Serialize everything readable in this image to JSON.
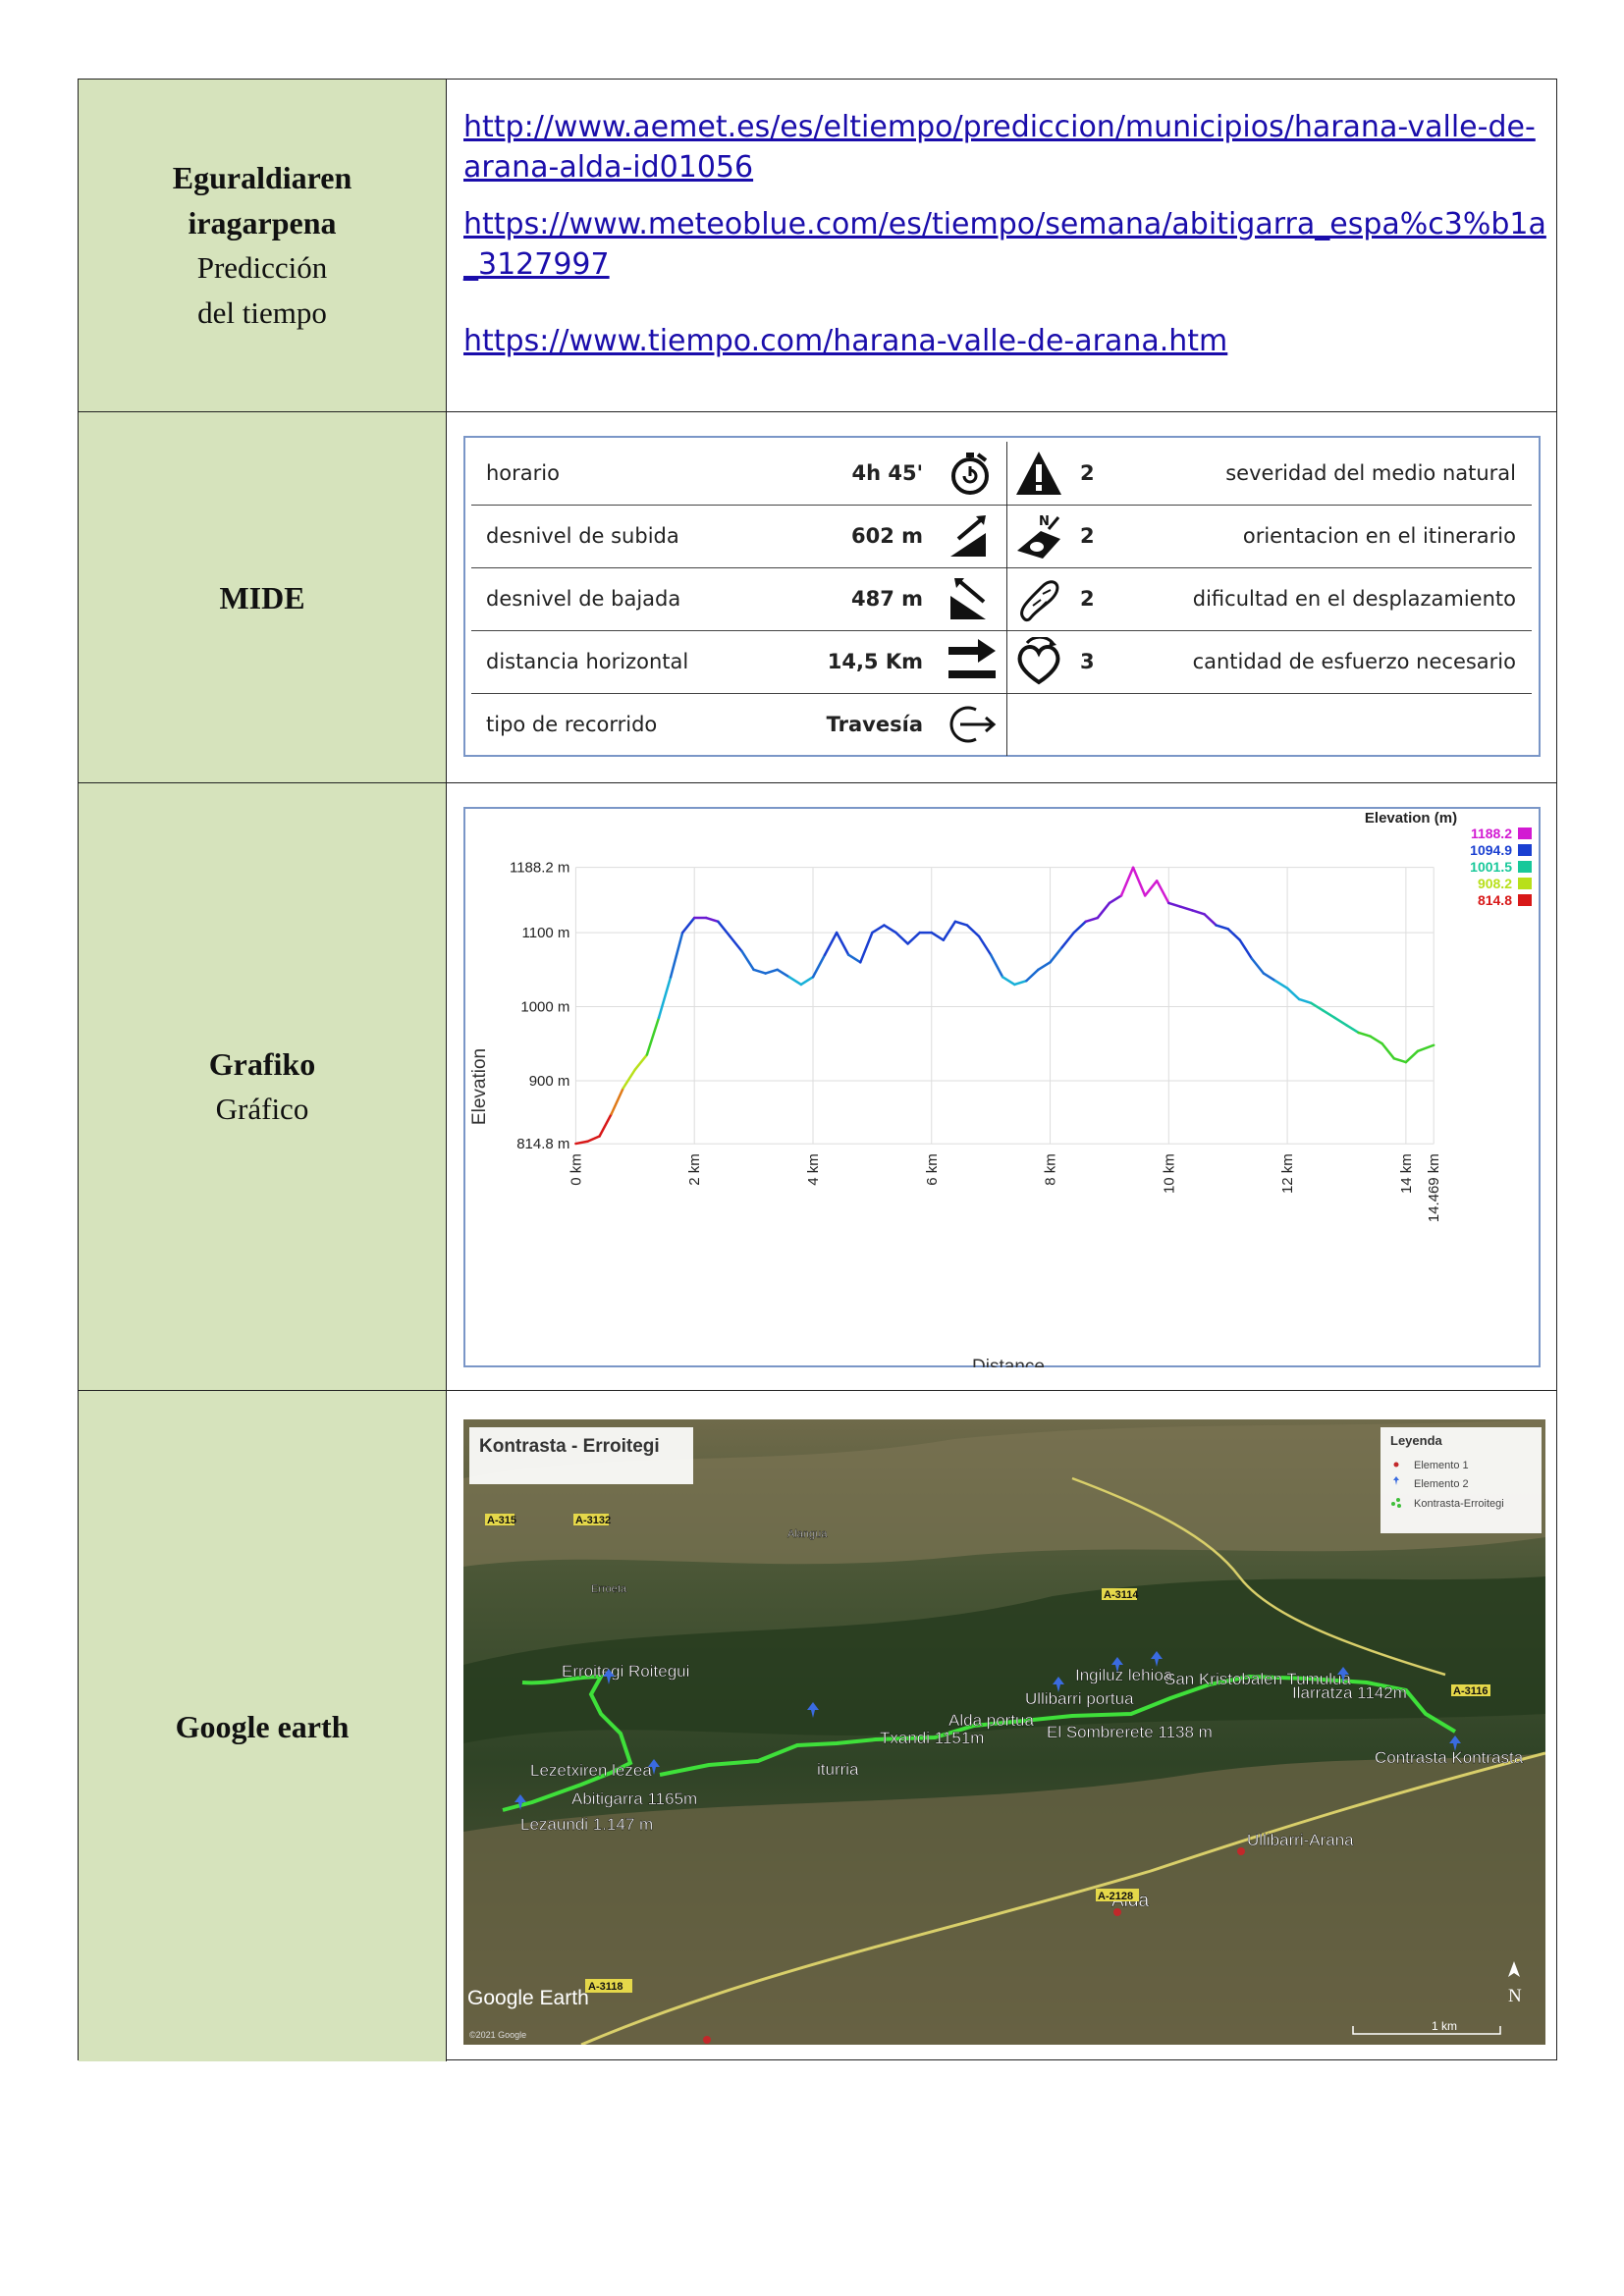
{
  "rows": {
    "forecast": {
      "label_bold_1": "Eguraldiaren",
      "label_bold_2": "iragarpena",
      "label_normal_1": "Predicción",
      "label_normal_2": "del tiempo",
      "links": [
        "http://www.aemet.es/es/eltiempo/prediccion/municipios/harana-valle-de-arana-alda-id01056",
        "https://www.meteoblue.com/es/tiempo/semana/abitigarra_espa%c3%b1a_3127997",
        "https://www.tiempo.com/harana-valle-de-arana.htm"
      ]
    },
    "mide": {
      "label": "MIDE",
      "items": [
        {
          "name": "horario",
          "value": "4h 45'",
          "score": "2",
          "desc": "severidad del medio natural"
        },
        {
          "name": "desnivel de subida",
          "value": "602 m",
          "score": "2",
          "desc": "orientacion en el itinerario"
        },
        {
          "name": "desnivel de bajada",
          "value": "487 m",
          "score": "2",
          "desc": "dificultad en el desplazamiento"
        },
        {
          "name": "distancia horizontal",
          "value": "14,5 Km",
          "score": "3",
          "desc": "cantidad de esfuerzo necesario"
        },
        {
          "name": "tipo de recorrido",
          "value": "Travesía"
        }
      ]
    },
    "graph": {
      "label_bold": "Grafiko",
      "label_normal": "Gráfico"
    },
    "map": {
      "label": "Google earth",
      "title": "Kontrasta - Erroitegi",
      "legend_title": "Leyenda",
      "legend_items": [
        "Elemento 1",
        "Elemento 2",
        "Kontrasta-Erroitegi"
      ],
      "places": [
        "Erroitegi Roitegui",
        "Lezetxiren lezea",
        "Abitigarra 1165m",
        "Lezaundi 1.147 m",
        "iturria",
        "Txandi 1151m",
        "Alda portua",
        "Ullibarri portua",
        "Ingiluz lehioa",
        "San Kristobalen Tumulua",
        "Ilarratza 1142m",
        "El Sombrerete 1138 m",
        "Contrasta Kontrasta",
        "Ullibarri-Arana",
        "Alda",
        "Alangua",
        "Erroeta"
      ],
      "roads": [
        "A-3114",
        "A-3116",
        "A-2128",
        "A-3118",
        "A-3132",
        "A-315"
      ],
      "brand": "Google Earth",
      "copyright": "©2021 Google",
      "scale": "1 km",
      "north": "N"
    }
  },
  "chart_data": {
    "type": "line",
    "title": "",
    "xlabel": "Distance",
    "ylabel": "Elevation",
    "legend_title": "Elevation (m)",
    "legend": [
      {
        "label": "1188.2",
        "color": "#d21ad2"
      },
      {
        "label": "1094.9",
        "color": "#1a3fd1"
      },
      {
        "label": "1001.5",
        "color": "#18c89a"
      },
      {
        "label": "908.2",
        "color": "#b8e01a"
      },
      {
        "label": "814.8",
        "color": "#d81818"
      }
    ],
    "xlim": [
      0,
      14.469
    ],
    "ylim": [
      814.8,
      1188.2
    ],
    "x_ticks": [
      "0 km",
      "2 km",
      "4 km",
      "6 km",
      "8 km",
      "10 km",
      "12 km",
      "14 km",
      "14.469 km"
    ],
    "x_tick_values": [
      0,
      2,
      4,
      6,
      8,
      10,
      12,
      14,
      14.469
    ],
    "y_ticks": [
      "814.8 m",
      "900 m",
      "1000 m",
      "1100 m",
      "1188.2 m"
    ],
    "y_tick_values": [
      814.8,
      900,
      1000,
      1100,
      1188.2
    ],
    "x": [
      0,
      0.2,
      0.4,
      0.6,
      0.8,
      1.0,
      1.2,
      1.4,
      1.6,
      1.8,
      2.0,
      2.2,
      2.4,
      2.6,
      2.8,
      3.0,
      3.2,
      3.4,
      3.6,
      3.8,
      4.0,
      4.2,
      4.4,
      4.6,
      4.8,
      5.0,
      5.2,
      5.4,
      5.6,
      5.8,
      6.0,
      6.2,
      6.4,
      6.6,
      6.8,
      7.0,
      7.2,
      7.4,
      7.6,
      7.8,
      8.0,
      8.2,
      8.4,
      8.6,
      8.8,
      9.0,
      9.2,
      9.4,
      9.6,
      9.8,
      10.0,
      10.2,
      10.4,
      10.6,
      10.8,
      11.0,
      11.2,
      11.4,
      11.6,
      11.8,
      12.0,
      12.2,
      12.4,
      12.6,
      12.8,
      13.0,
      13.2,
      13.4,
      13.6,
      13.8,
      14.0,
      14.2,
      14.469
    ],
    "y": [
      815,
      818,
      825,
      855,
      890,
      915,
      935,
      985,
      1040,
      1100,
      1120,
      1120,
      1115,
      1095,
      1075,
      1050,
      1045,
      1050,
      1040,
      1030,
      1040,
      1070,
      1100,
      1070,
      1060,
      1100,
      1110,
      1100,
      1085,
      1100,
      1100,
      1090,
      1115,
      1110,
      1095,
      1070,
      1040,
      1030,
      1035,
      1050,
      1060,
      1080,
      1100,
      1115,
      1120,
      1140,
      1150,
      1188,
      1150,
      1170,
      1140,
      1135,
      1130,
      1125,
      1110,
      1105,
      1090,
      1065,
      1045,
      1035,
      1025,
      1010,
      1005,
      995,
      985,
      975,
      965,
      960,
      950,
      930,
      925,
      940,
      948
    ]
  }
}
